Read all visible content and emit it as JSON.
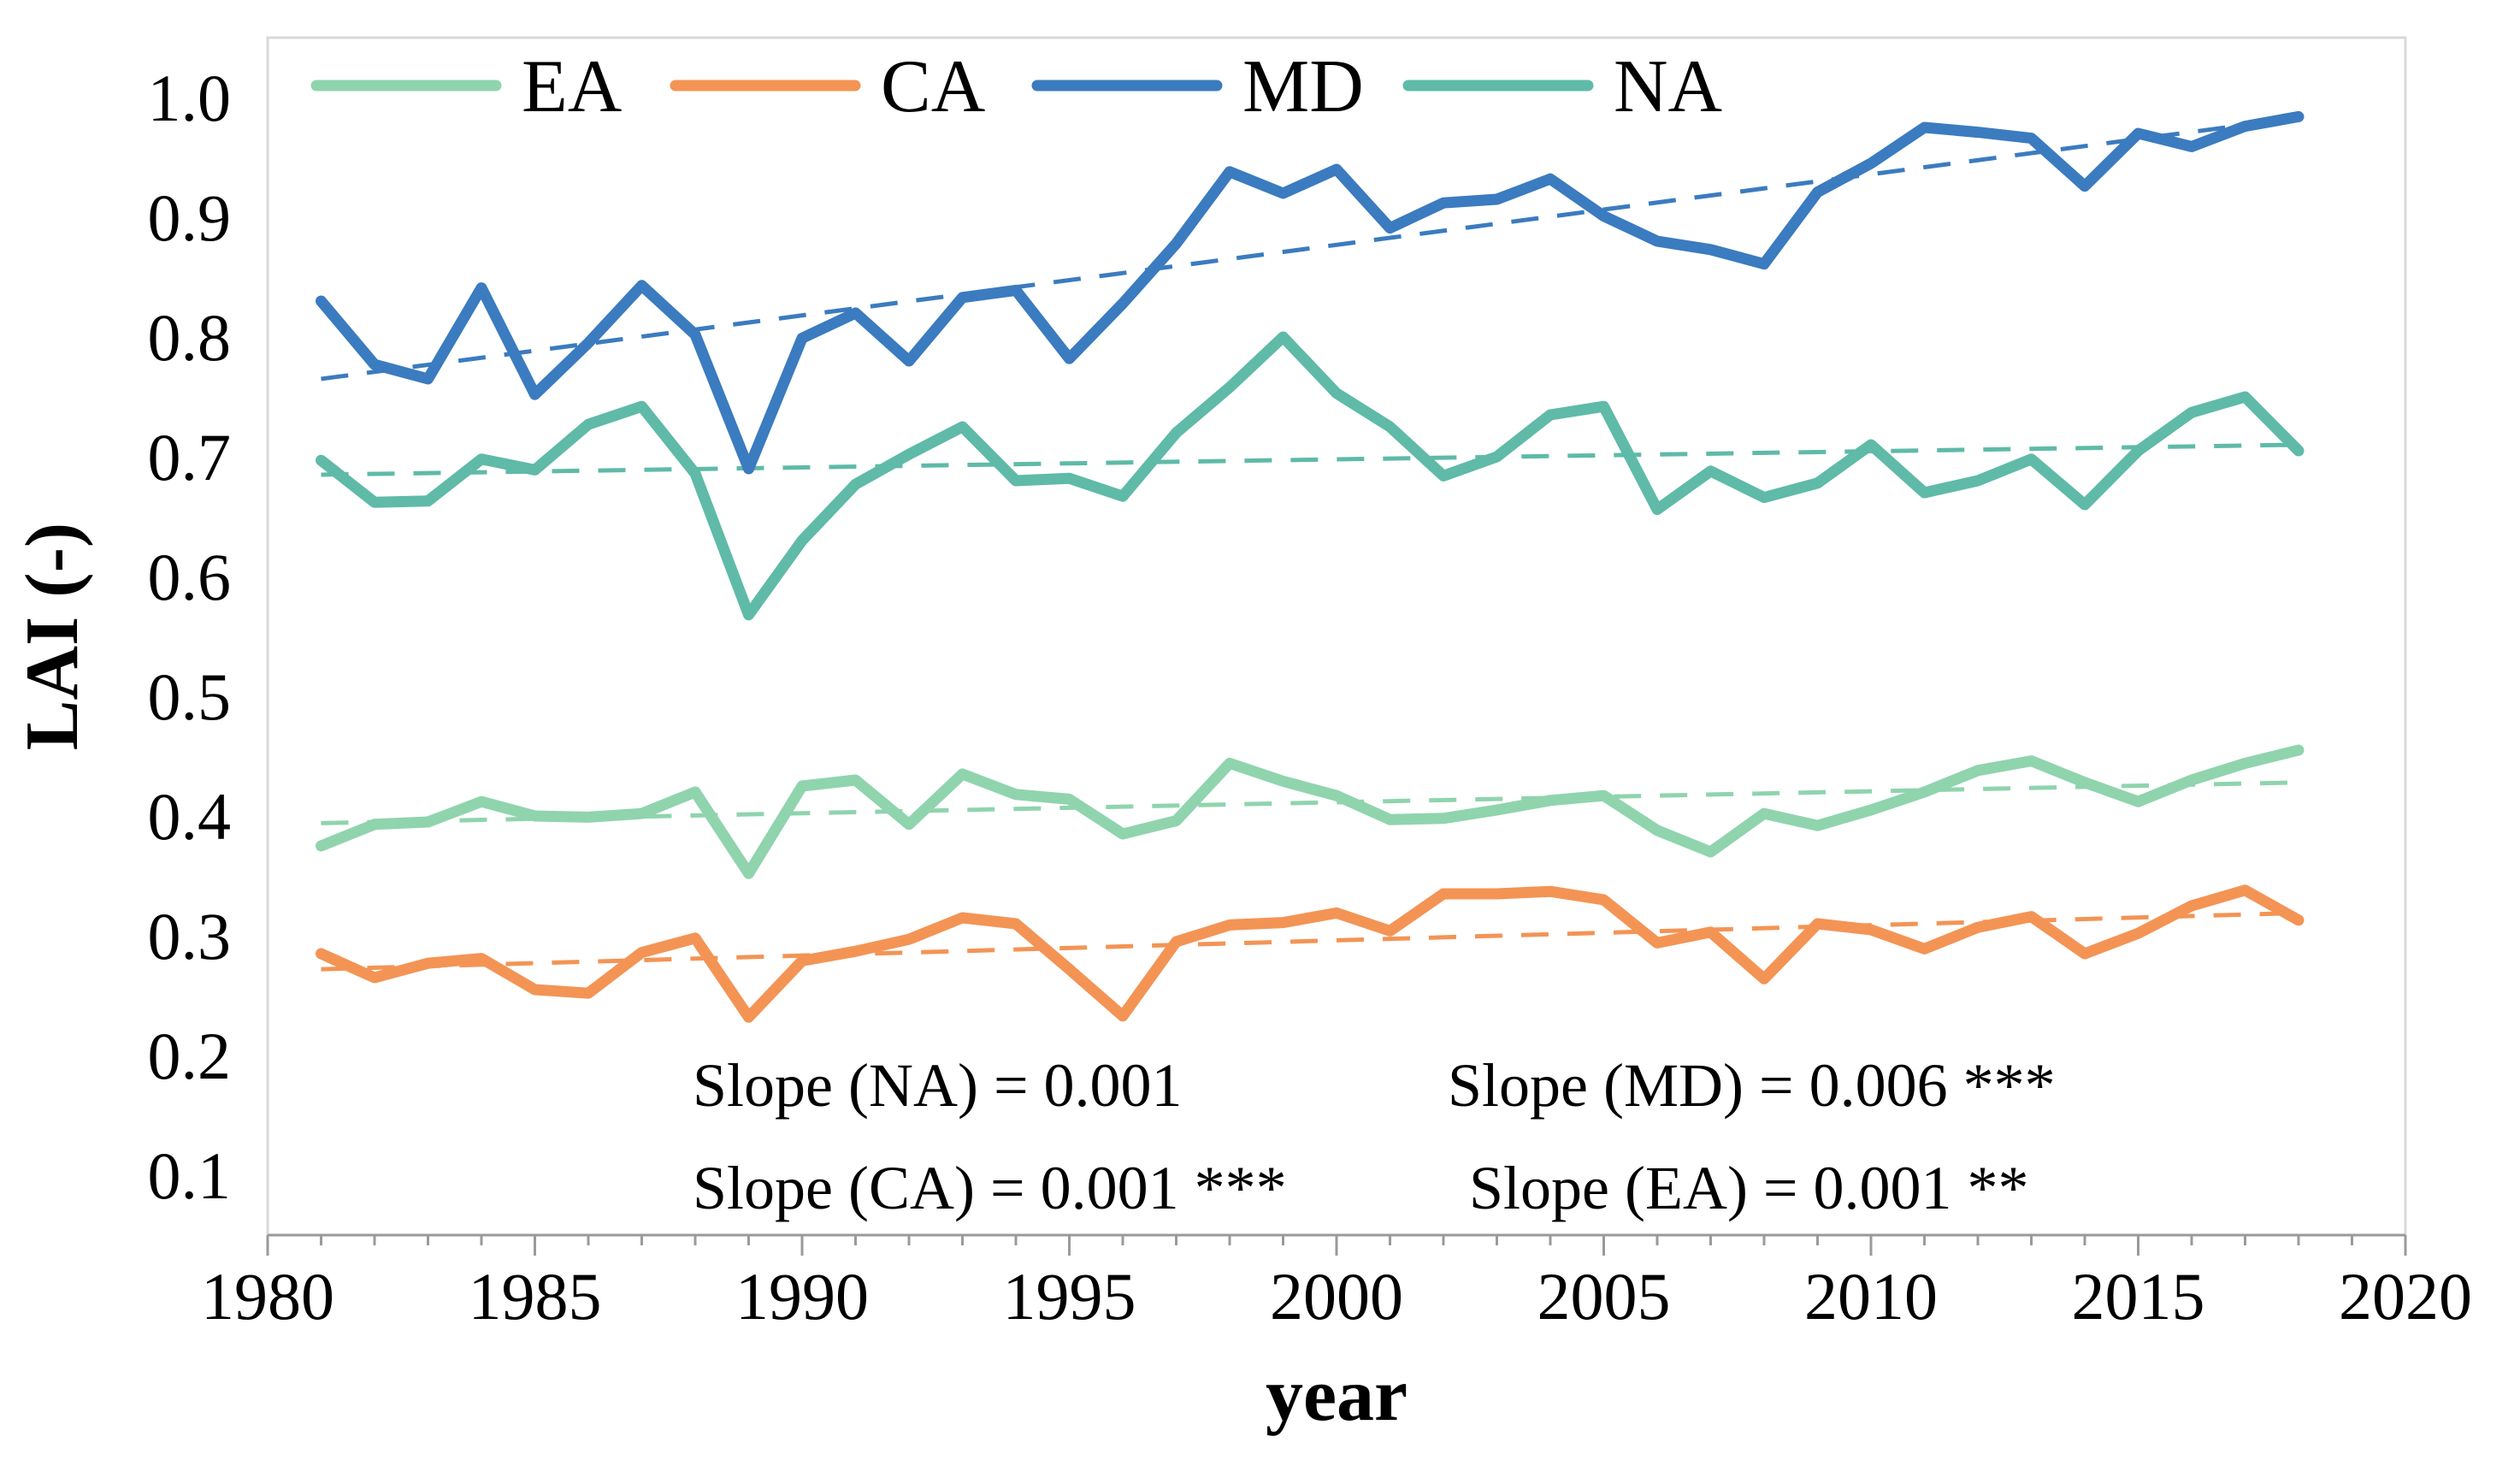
{
  "chart_data": {
    "type": "line",
    "xlabel": "year",
    "ylabel": "LAI (-)",
    "xlim": [
      1980,
      2020
    ],
    "ylim": [
      0.05,
      1.05
    ],
    "xticks": [
      1980,
      1985,
      1990,
      1995,
      2000,
      2005,
      2010,
      2015,
      2020
    ],
    "yticks": [
      0.1,
      0.2,
      0.3,
      0.4,
      0.5,
      0.6,
      0.7,
      0.8,
      0.9,
      1.0
    ],
    "ytick_labels": [
      "0.1",
      "0.2",
      "0.3",
      "0.4",
      "0.5",
      "0.6",
      "0.7",
      "0.8",
      "0.9",
      "1.0"
    ],
    "grid": false,
    "legend_position": "top",
    "x": [
      1981,
      1982,
      1983,
      1984,
      1985,
      1986,
      1987,
      1988,
      1989,
      1990,
      1991,
      1992,
      1993,
      1994,
      1995,
      1996,
      1997,
      1998,
      1999,
      2000,
      2001,
      2002,
      2003,
      2004,
      2005,
      2006,
      2007,
      2008,
      2009,
      2010,
      2011,
      2012,
      2013,
      2014,
      2015,
      2016,
      2017,
      2018
    ],
    "series": [
      {
        "name": "EA",
        "color": "#8fd4ad",
        "values": [
          0.375,
          0.393,
          0.395,
          0.412,
          0.4,
          0.399,
          0.402,
          0.42,
          0.352,
          0.425,
          0.43,
          0.393,
          0.435,
          0.418,
          0.414,
          0.385,
          0.396,
          0.444,
          0.429,
          0.417,
          0.397,
          0.398,
          0.405,
          0.413,
          0.417,
          0.388,
          0.37,
          0.402,
          0.392,
          0.405,
          0.42,
          0.438,
          0.446,
          0.428,
          0.412,
          0.43,
          0.444,
          0.455
        ],
        "trend": [
          0.394,
          0.428
        ]
      },
      {
        "name": "CA",
        "color": "#f39455",
        "values": [
          0.285,
          0.265,
          0.277,
          0.281,
          0.255,
          0.252,
          0.286,
          0.298,
          0.232,
          0.279,
          0.287,
          0.297,
          0.315,
          0.31,
          0.272,
          0.233,
          0.295,
          0.309,
          0.311,
          0.319,
          0.304,
          0.335,
          0.335,
          0.337,
          0.33,
          0.294,
          0.303,
          0.264,
          0.31,
          0.305,
          0.289,
          0.307,
          0.316,
          0.285,
          0.302,
          0.325,
          0.338,
          0.313
        ],
        "trend": [
          0.272,
          0.319
        ]
      },
      {
        "name": "MD",
        "color": "#3b7bbf",
        "values": [
          0.83,
          0.777,
          0.765,
          0.841,
          0.752,
          0.795,
          0.843,
          0.802,
          0.69,
          0.799,
          0.82,
          0.78,
          0.833,
          0.839,
          0.782,
          0.828,
          0.878,
          0.938,
          0.92,
          0.94,
          0.891,
          0.912,
          0.915,
          0.932,
          0.901,
          0.88,
          0.873,
          0.861,
          0.921,
          0.945,
          0.975,
          0.971,
          0.966,
          0.926,
          0.97,
          0.959,
          0.976,
          0.984
        ],
        "trend": [
          0.765,
          0.983
        ]
      },
      {
        "name": "NA",
        "color": "#5fbaa8",
        "values": [
          0.697,
          0.662,
          0.663,
          0.698,
          0.689,
          0.727,
          0.742,
          0.686,
          0.568,
          0.63,
          0.677,
          0.702,
          0.725,
          0.68,
          0.682,
          0.667,
          0.72,
          0.758,
          0.8,
          0.753,
          0.725,
          0.684,
          0.7,
          0.735,
          0.742,
          0.656,
          0.688,
          0.666,
          0.678,
          0.71,
          0.67,
          0.68,
          0.698,
          0.66,
          0.705,
          0.737,
          0.75,
          0.705
        ],
        "trend": [
          0.685,
          0.71
        ]
      }
    ],
    "annotations": [
      "Slope (NA) = 0.001",
      "Slope (MD) = 0.006 ***",
      "Slope (CA) = 0.001 ***",
      "Slope (EA) = 0.001 **"
    ]
  }
}
